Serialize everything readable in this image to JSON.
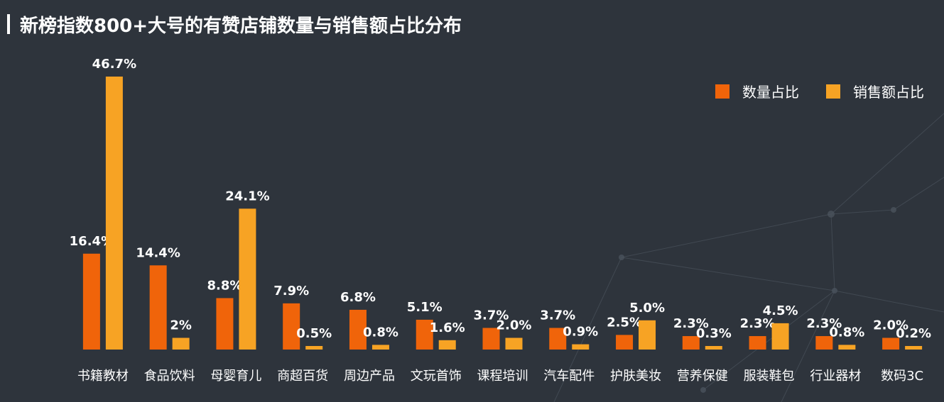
{
  "title": "新榜指数800+大号的有赞店铺数量与销售额占比分布",
  "colors": {
    "background": "#2e343c",
    "count_bar": "#f0640a",
    "sales_bar": "#f7a324"
  },
  "legend": {
    "count": "数量占比",
    "sales": "销售额占比"
  },
  "chart_data": {
    "type": "bar",
    "categories": [
      "书籍教材",
      "食品饮料",
      "母婴育儿",
      "商超百货",
      "周边产品",
      "文玩首饰",
      "课程培训",
      "汽车配件",
      "护肤美妆",
      "营养保健",
      "服装鞋包",
      "行业器材",
      "数码3C"
    ],
    "series": [
      {
        "name": "数量占比",
        "values": [
          16.4,
          14.4,
          8.8,
          7.9,
          6.8,
          5.1,
          3.7,
          3.7,
          2.5,
          2.3,
          2.3,
          2.3,
          2.0
        ],
        "labels": [
          "16.4%",
          "14.4%",
          "8.8%",
          "7.9%",
          "6.8%",
          "5.1%",
          "3.7%",
          "3.7%",
          "2.5%",
          "2.3%",
          "2.3%",
          "2.3%",
          "2.0%"
        ]
      },
      {
        "name": "销售额占比",
        "values": [
          46.7,
          2.0,
          24.1,
          0.5,
          0.8,
          1.6,
          2.0,
          0.9,
          5.0,
          0.3,
          4.5,
          0.8,
          0.2
        ],
        "labels": [
          "46.7%",
          "2%",
          "24.1%",
          "0.5%",
          "0.8%",
          "1.6%",
          "2.0%",
          "0.9%",
          "5.0%",
          "0.3%",
          "4.5%",
          "0.8%",
          "0.2%"
        ]
      }
    ],
    "ylim": [
      0,
      46.7
    ],
    "grid": false,
    "legend_position": "top-right"
  }
}
